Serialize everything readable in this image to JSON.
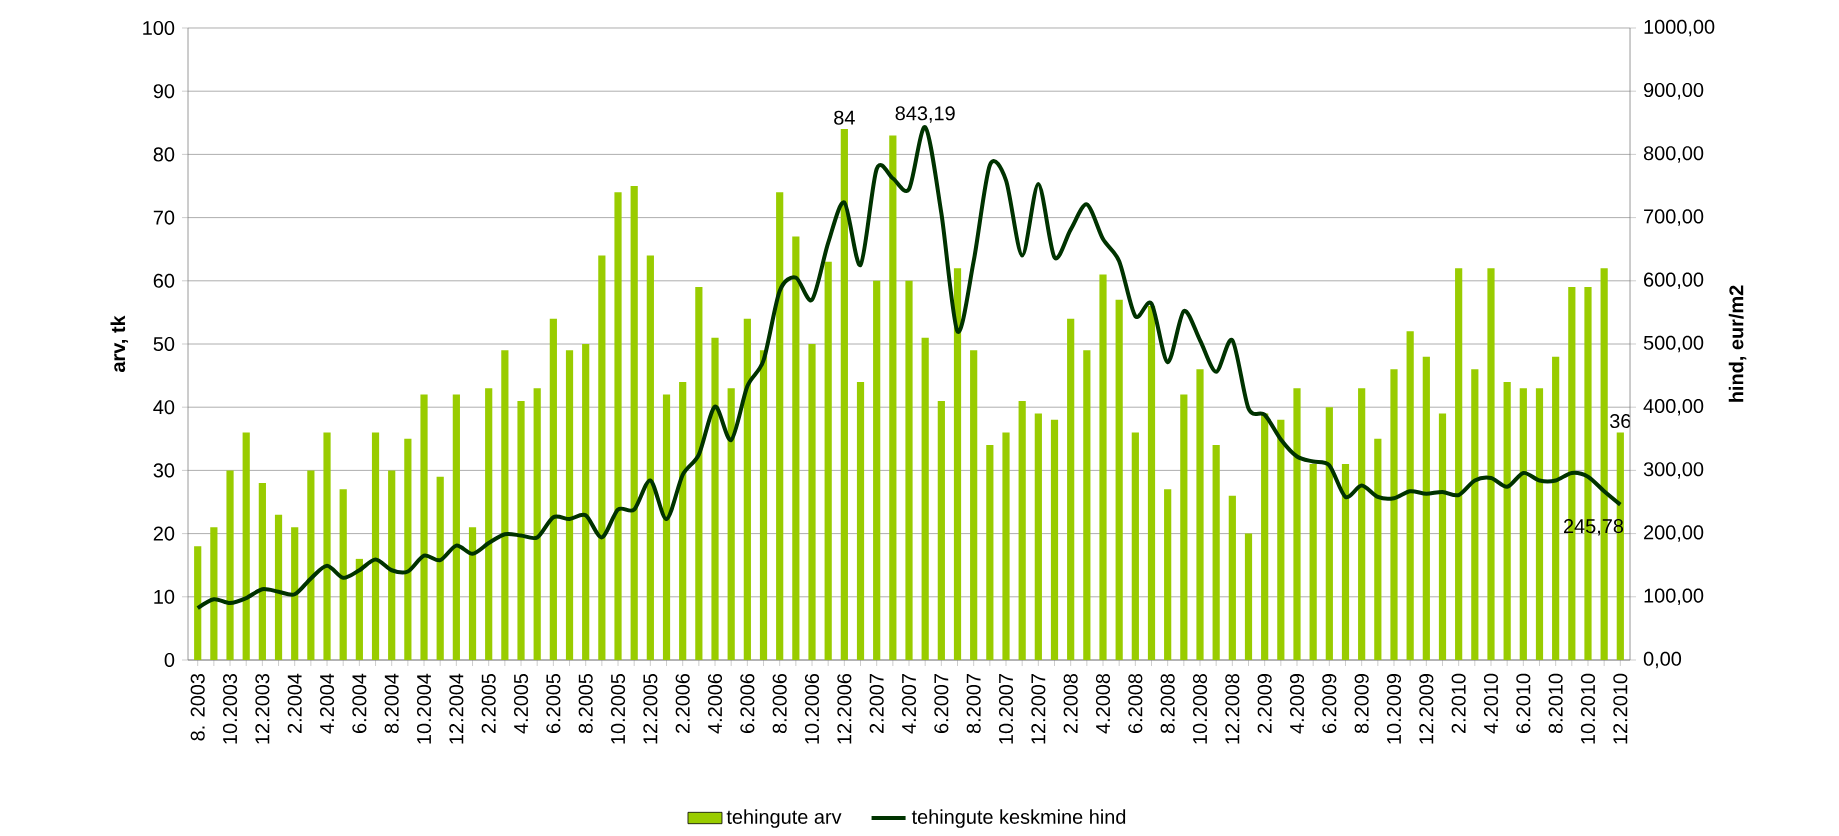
{
  "chart_data": {
    "type": "bar",
    "categories": [
      "8. 2003",
      null,
      "10.2003",
      null,
      "12.2003",
      null,
      "2.2004",
      null,
      "4.2004",
      null,
      "6.2004",
      null,
      "8.2004",
      null,
      "10.2004",
      null,
      "12.2004",
      null,
      "2.2005",
      null,
      "4.2005",
      null,
      "6.2005",
      null,
      "8.2005",
      null,
      "10.2005",
      null,
      "12.2005",
      null,
      "2.2006",
      null,
      "4.2006",
      null,
      "6.2006",
      null,
      "8.2006",
      null,
      "10.2006",
      null,
      "12.2006",
      null,
      "2.2007",
      null,
      "4.2007",
      null,
      "6.2007",
      null,
      "8.2007",
      null,
      "10.2007",
      null,
      "12.2007",
      null,
      "2.2008",
      null,
      "4.2008",
      null,
      "6.2008",
      null,
      "8.2008",
      null,
      "10.2008",
      null,
      "12.2008",
      null,
      "2.2009",
      null,
      "4.2009",
      null,
      "6.2009",
      null,
      "8.2009",
      null,
      "10.2009",
      null,
      "12.2009",
      null,
      "2.2010",
      null,
      "4.2010",
      null,
      "6.2010",
      null,
      "8.2010",
      null,
      "10.2010",
      null,
      "12.2010"
    ],
    "series": [
      {
        "name": "tehingute arv",
        "color": "#99cc00",
        "values": [
          18,
          21,
          30,
          36,
          28,
          23,
          21,
          30,
          36,
          27,
          16,
          36,
          30,
          35,
          42,
          29,
          42,
          21,
          43,
          49,
          41,
          43,
          54,
          49,
          50,
          64,
          74,
          75,
          64,
          42,
          44,
          59,
          51,
          43,
          54,
          49,
          74,
          67,
          50,
          63,
          84,
          44,
          60,
          83,
          60,
          51,
          41,
          62,
          49,
          34,
          36,
          41,
          39,
          38,
          54,
          49,
          61,
          57,
          36,
          56,
          27,
          42,
          46,
          34,
          26,
          20,
          39,
          38,
          43,
          31,
          40,
          31,
          43,
          35,
          46,
          52,
          48,
          39,
          62,
          46,
          62,
          44,
          43,
          43,
          48,
          59,
          59,
          62,
          36
        ],
        "value_labels": [
          null,
          null,
          null,
          null,
          null,
          null,
          null,
          null,
          null,
          null,
          null,
          null,
          null,
          null,
          null,
          null,
          null,
          null,
          null,
          null,
          null,
          null,
          null,
          null,
          null,
          null,
          null,
          null,
          null,
          null,
          null,
          null,
          null,
          null,
          null,
          null,
          null,
          null,
          null,
          null,
          "84",
          null,
          null,
          null,
          null,
          null,
          null,
          null,
          null,
          null,
          null,
          null,
          null,
          null,
          null,
          null,
          null,
          null,
          null,
          null,
          null,
          null,
          null,
          null,
          null,
          null,
          null,
          null,
          null,
          null,
          null,
          null,
          null,
          null,
          null,
          null,
          null,
          null,
          null,
          null,
          null,
          null,
          null,
          null,
          null,
          null,
          null,
          null,
          "36"
        ]
      },
      {
        "name": "tehingute keskmine hind",
        "type": "line",
        "axis": "y2",
        "color": "#003300",
        "values": [
          82,
          96,
          90,
          98,
          112,
          108,
          104,
          129,
          149,
          130,
          142,
          159,
          142,
          140,
          165,
          158,
          181,
          168,
          185,
          199,
          197,
          194,
          226,
          223,
          229,
          194,
          238,
          238,
          284,
          223,
          293,
          325,
          401,
          348,
          433,
          474,
          584,
          605,
          570,
          660,
          724,
          625,
          777,
          762,
          745,
          843.19,
          707,
          520,
          631,
          783,
          759,
          640,
          753,
          637,
          681,
          721,
          666,
          631,
          544,
          564,
          471,
          552,
          506,
          456,
          506,
          398,
          388,
          349,
          322,
          314,
          308,
          258,
          276,
          258,
          256,
          267,
          263,
          266,
          261,
          284,
          288,
          274,
          296,
          284,
          284,
          296,
          290,
          267,
          245.78
        ],
        "value_labels": [
          null,
          null,
          null,
          null,
          null,
          null,
          null,
          null,
          null,
          null,
          null,
          null,
          null,
          null,
          null,
          null,
          null,
          null,
          null,
          null,
          null,
          null,
          null,
          null,
          null,
          null,
          null,
          null,
          null,
          null,
          null,
          null,
          null,
          null,
          null,
          null,
          null,
          null,
          null,
          null,
          null,
          null,
          null,
          null,
          null,
          "843,19",
          null,
          null,
          null,
          null,
          null,
          null,
          null,
          null,
          null,
          null,
          null,
          null,
          null,
          null,
          null,
          null,
          null,
          null,
          null,
          null,
          null,
          null,
          null,
          null,
          null,
          null,
          null,
          null,
          null,
          null,
          null,
          null,
          null,
          null,
          null,
          null,
          null,
          null,
          null,
          null,
          null,
          null,
          "245,78"
        ]
      }
    ],
    "ylabel": "arv, tk",
    "y2label": "hind, eur/m2",
    "ylim": [
      0,
      100
    ],
    "yticks": [
      0,
      10,
      20,
      30,
      40,
      50,
      60,
      70,
      80,
      90,
      100
    ],
    "y2lim": [
      0,
      1000
    ],
    "y2ticks": [
      {
        "value": 0,
        "label": "0,00"
      },
      {
        "value": 100,
        "label": "100,00"
      },
      {
        "value": 200,
        "label": "200,00"
      },
      {
        "value": 300,
        "label": "300,00"
      },
      {
        "value": 400,
        "label": "400,00"
      },
      {
        "value": 500,
        "label": "500,00"
      },
      {
        "value": 600,
        "label": "600,00"
      },
      {
        "value": 700,
        "label": "700,00"
      },
      {
        "value": 800,
        "label": "800,00"
      },
      {
        "value": 900,
        "label": "900,00"
      },
      {
        "value": 1000,
        "label": "1000,00"
      }
    ],
    "grid": "y",
    "legend": "bottom"
  }
}
